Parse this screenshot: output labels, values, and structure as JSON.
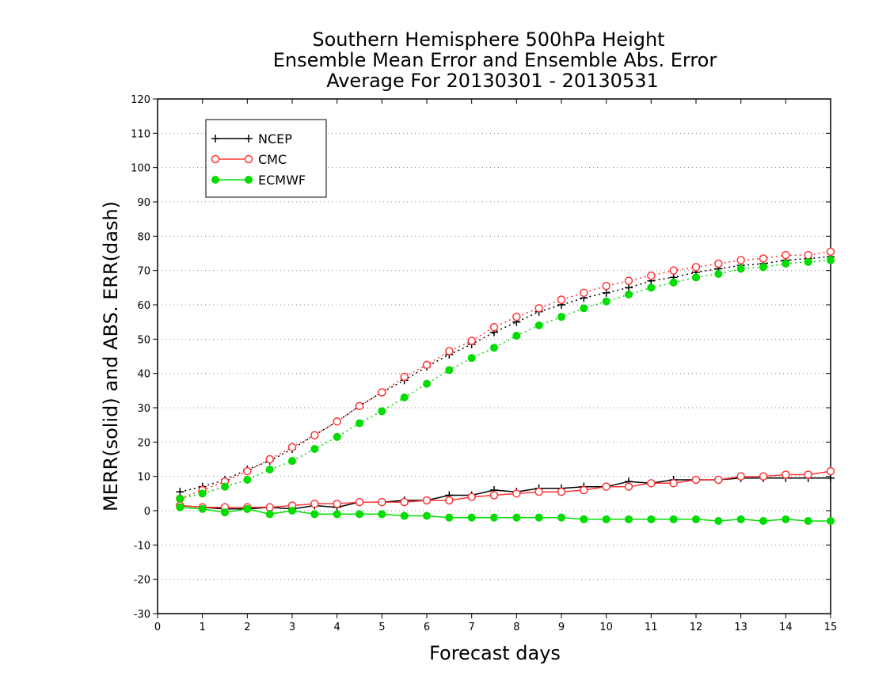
{
  "chart_data": {
    "type": "line",
    "title_lines": [
      "Southern Hemisphere 500hPa Height",
      "Ensemble Mean Error and Ensemble Abs. Error",
      "Average For 20130301 - 20130531"
    ],
    "xlabel": "Forecast days",
    "ylabel": "MERR(solid) and ABS. ERR(dash)",
    "xlim": [
      0,
      15
    ],
    "ylim": [
      -30,
      120
    ],
    "xticks": [
      0,
      1,
      2,
      3,
      4,
      5,
      6,
      7,
      8,
      9,
      10,
      11,
      12,
      13,
      14,
      15
    ],
    "yticks": [
      -30,
      -20,
      -10,
      0,
      10,
      20,
      30,
      40,
      50,
      60,
      70,
      80,
      90,
      100,
      110,
      120
    ],
    "ygrid": true,
    "legend_position": "top-left",
    "x": [
      0.5,
      1,
      1.5,
      2,
      2.5,
      3,
      3.5,
      4,
      4.5,
      5,
      5.5,
      6,
      6.5,
      7,
      7.5,
      8,
      8.5,
      9,
      9.5,
      10,
      10.5,
      11,
      11.5,
      12,
      12.5,
      13,
      13.5,
      14,
      14.5,
      15
    ],
    "series": [
      {
        "name": "NCEP",
        "color": "#000000",
        "marker": "plus",
        "mean_error": [
          1.5,
          1.0,
          0.5,
          0.5,
          1.0,
          0.5,
          1.5,
          1.0,
          2.5,
          2.5,
          3.0,
          3.0,
          4.5,
          4.5,
          6.0,
          5.5,
          6.5,
          6.5,
          7.0,
          7.0,
          8.5,
          8.0,
          9.0,
          9.0,
          9.0,
          9.5,
          9.5,
          9.5,
          9.5,
          9.5
        ],
        "abs_error": [
          5.5,
          7.0,
          9.0,
          12.0,
          14.5,
          18.0,
          22.0,
          26.0,
          30.5,
          34.5,
          38.0,
          42.0,
          45.5,
          48.5,
          52.0,
          55.0,
          58.0,
          60.0,
          62.0,
          63.5,
          65.0,
          67.0,
          68.0,
          69.5,
          70.5,
          71.5,
          72.0,
          73.0,
          73.5,
          74.0
        ]
      },
      {
        "name": "CMC",
        "color": "#ff3333",
        "marker": "circle-open",
        "mean_error": [
          1.5,
          1.0,
          1.0,
          1.0,
          1.0,
          1.5,
          2.0,
          2.0,
          2.5,
          2.5,
          2.5,
          3.0,
          3.0,
          4.0,
          4.5,
          5.0,
          5.5,
          5.5,
          6.0,
          7.0,
          7.0,
          8.0,
          8.0,
          9.0,
          9.0,
          10.0,
          10.0,
          10.5,
          10.5,
          11.5
        ],
        "abs_error": [
          3.5,
          6.0,
          8.5,
          11.5,
          15.0,
          18.5,
          22.0,
          26.0,
          30.5,
          34.5,
          39.0,
          42.5,
          46.5,
          49.5,
          53.5,
          56.5,
          59.0,
          61.5,
          63.5,
          65.5,
          67.0,
          68.5,
          70.0,
          71.0,
          72.0,
          73.0,
          73.5,
          74.5,
          74.5,
          75.5
        ]
      },
      {
        "name": "ECMWF",
        "color": "#00dd00",
        "marker": "circle-filled",
        "mean_error": [
          1.0,
          0.5,
          -0.5,
          0.5,
          -1.0,
          0.0,
          -1.0,
          -1.0,
          -1.0,
          -1.0,
          -1.5,
          -1.5,
          -2.0,
          -2.0,
          -2.0,
          -2.0,
          -2.0,
          -2.0,
          -2.5,
          -2.5,
          -2.5,
          -2.5,
          -2.5,
          -2.5,
          -3.0,
          -2.5,
          -3.0,
          -2.5,
          -3.0,
          -3.0
        ],
        "abs_error": [
          3.5,
          5.0,
          7.0,
          9.0,
          12.0,
          14.5,
          18.0,
          21.5,
          25.5,
          29.0,
          33.0,
          37.0,
          41.0,
          44.5,
          47.5,
          51.0,
          54.0,
          56.5,
          59.0,
          61.0,
          63.0,
          65.0,
          66.5,
          68.0,
          69.0,
          70.5,
          71.0,
          72.0,
          72.5,
          73.0
        ]
      }
    ]
  }
}
